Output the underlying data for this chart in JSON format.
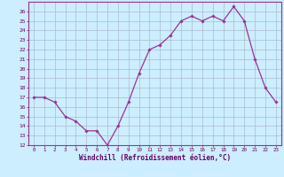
{
  "x": [
    0,
    1,
    2,
    3,
    4,
    5,
    6,
    7,
    8,
    9,
    10,
    11,
    12,
    13,
    14,
    15,
    16,
    17,
    18,
    19,
    20,
    21,
    22,
    23
  ],
  "y": [
    17.0,
    17.0,
    16.5,
    15.0,
    14.5,
    13.5,
    13.5,
    12.0,
    14.0,
    16.5,
    19.5,
    22.0,
    22.5,
    23.5,
    25.0,
    25.5,
    25.0,
    25.5,
    25.0,
    26.5,
    25.0,
    21.0,
    18.0,
    16.5
  ],
  "line_color": "#993399",
  "marker": "D",
  "marker_size": 1.8,
  "bg_color": "#cceeff",
  "grid_color": "#aabbcc",
  "xlabel": "Windchill (Refroidissement éolien,°C)",
  "xlabel_color": "#660066",
  "tick_color": "#660066",
  "ylim": [
    12,
    27
  ],
  "xlim": [
    -0.5,
    23.5
  ],
  "yticks": [
    12,
    13,
    14,
    15,
    16,
    17,
    18,
    19,
    20,
    21,
    22,
    23,
    24,
    25,
    26
  ],
  "xticks": [
    0,
    1,
    2,
    3,
    4,
    5,
    6,
    7,
    8,
    9,
    10,
    11,
    12,
    13,
    14,
    15,
    16,
    17,
    18,
    19,
    20,
    21,
    22,
    23
  ],
  "spine_color": "#993399",
  "line_width": 0.9
}
